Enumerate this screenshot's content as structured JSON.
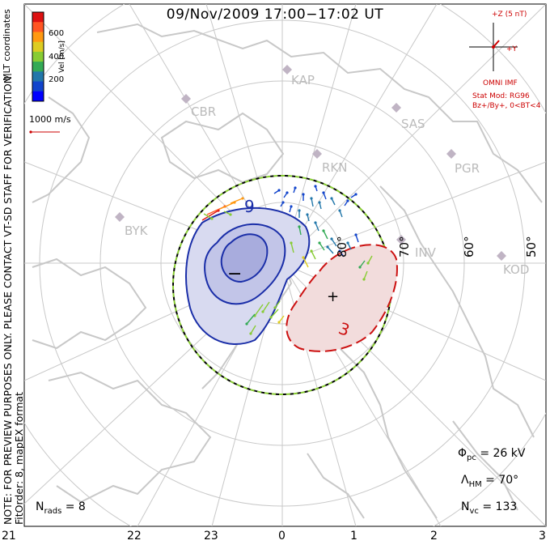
{
  "title": "09/Nov/2009  17:00−17:02  UT",
  "side_note": {
    "line1": "NOTE: FOR PREVIEW PURPOSES ONLY. PLEASE CONTACT VT-SD STAFF FOR VERIFICATION.",
    "line2": "FitOrder: 8, mapEX format"
  },
  "colorbar": {
    "title": "Vel [m/s]",
    "coord_label": "MLT coordinates",
    "ticks": [
      "600",
      "400",
      "200"
    ],
    "colors": [
      "#dd1111",
      "#ff5522",
      "#ff9911",
      "#ddcc22",
      "#88cc33",
      "#33aa55",
      "#2277aa",
      "#1144cc",
      "#0000ff"
    ]
  },
  "scale_vector": {
    "label": "1000 m/s",
    "color": "#cc0000"
  },
  "stations": [
    "KAP",
    "CBR",
    "SAS",
    "RKN",
    "PGR",
    "BYK",
    "INV",
    "KOD"
  ],
  "lat_labels": [
    "80°",
    "70°",
    "60°",
    "50°"
  ],
  "mlt_ticks": [
    "21",
    "22",
    "23",
    "0",
    "1",
    "2",
    "3"
  ],
  "contours": {
    "neg_label": "9",
    "pos_label": "3",
    "neg_sign": "−",
    "pos_sign": "+",
    "neg_color": "#1a2ea8",
    "pos_color": "#cc1111"
  },
  "imf": {
    "axis_z": "+Z (5 nT)",
    "axis_y": "+Y",
    "source": "OMNI IMF",
    "model": "Stat Mod: RG96",
    "condition": "Bz+/By+, 0<BT<4"
  },
  "stats": {
    "phi_symbol": "Φ",
    "phi_sub": "pc",
    "phi_value": " = 26 kV",
    "lambda_symbol": "Λ",
    "lambda_sub": "HM",
    "lambda_value": " = 70°",
    "nvc_symbol": "N",
    "nvc_sub": "vc",
    "nvc_value": " = 133",
    "nrads_symbol": "N",
    "nrads_sub": "rads",
    "nrads_value": " = 8"
  }
}
